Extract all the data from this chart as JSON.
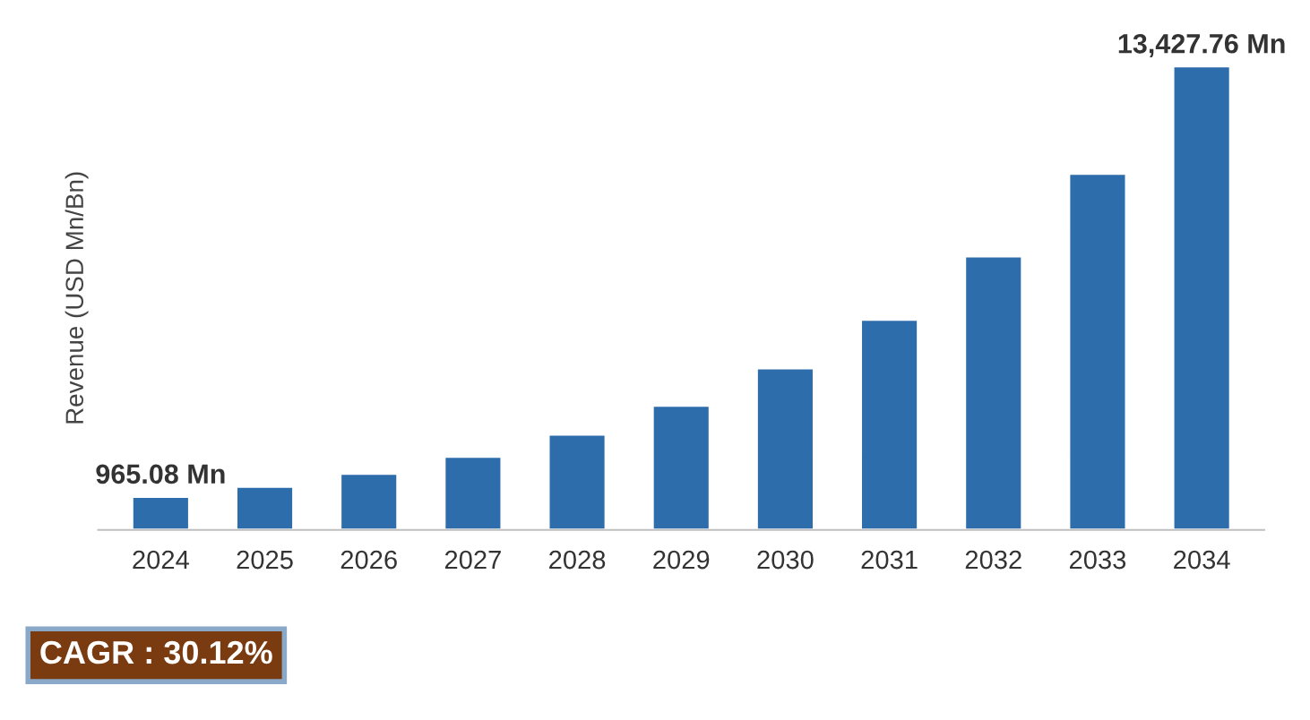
{
  "chart_data": {
    "type": "bar",
    "ylabel": "Revenue (USD Mn/Bn)",
    "categories": [
      "2024",
      "2025",
      "2026",
      "2027",
      "2028",
      "2029",
      "2030",
      "2031",
      "2032",
      "2033",
      "2034"
    ],
    "values": [
      965.08,
      1256,
      1634,
      2126,
      2766,
      3599,
      4683,
      6094,
      7929,
      10318,
      13427.76
    ],
    "value_labels": [
      "965.08 Mn",
      null,
      null,
      null,
      null,
      null,
      null,
      null,
      null,
      null,
      "13,427.76 Mn"
    ],
    "color": "#2e6dab",
    "grid": false,
    "legend": false,
    "tick_labels": "x",
    "annotations": [
      "CAGR : 30.12%"
    ]
  }
}
